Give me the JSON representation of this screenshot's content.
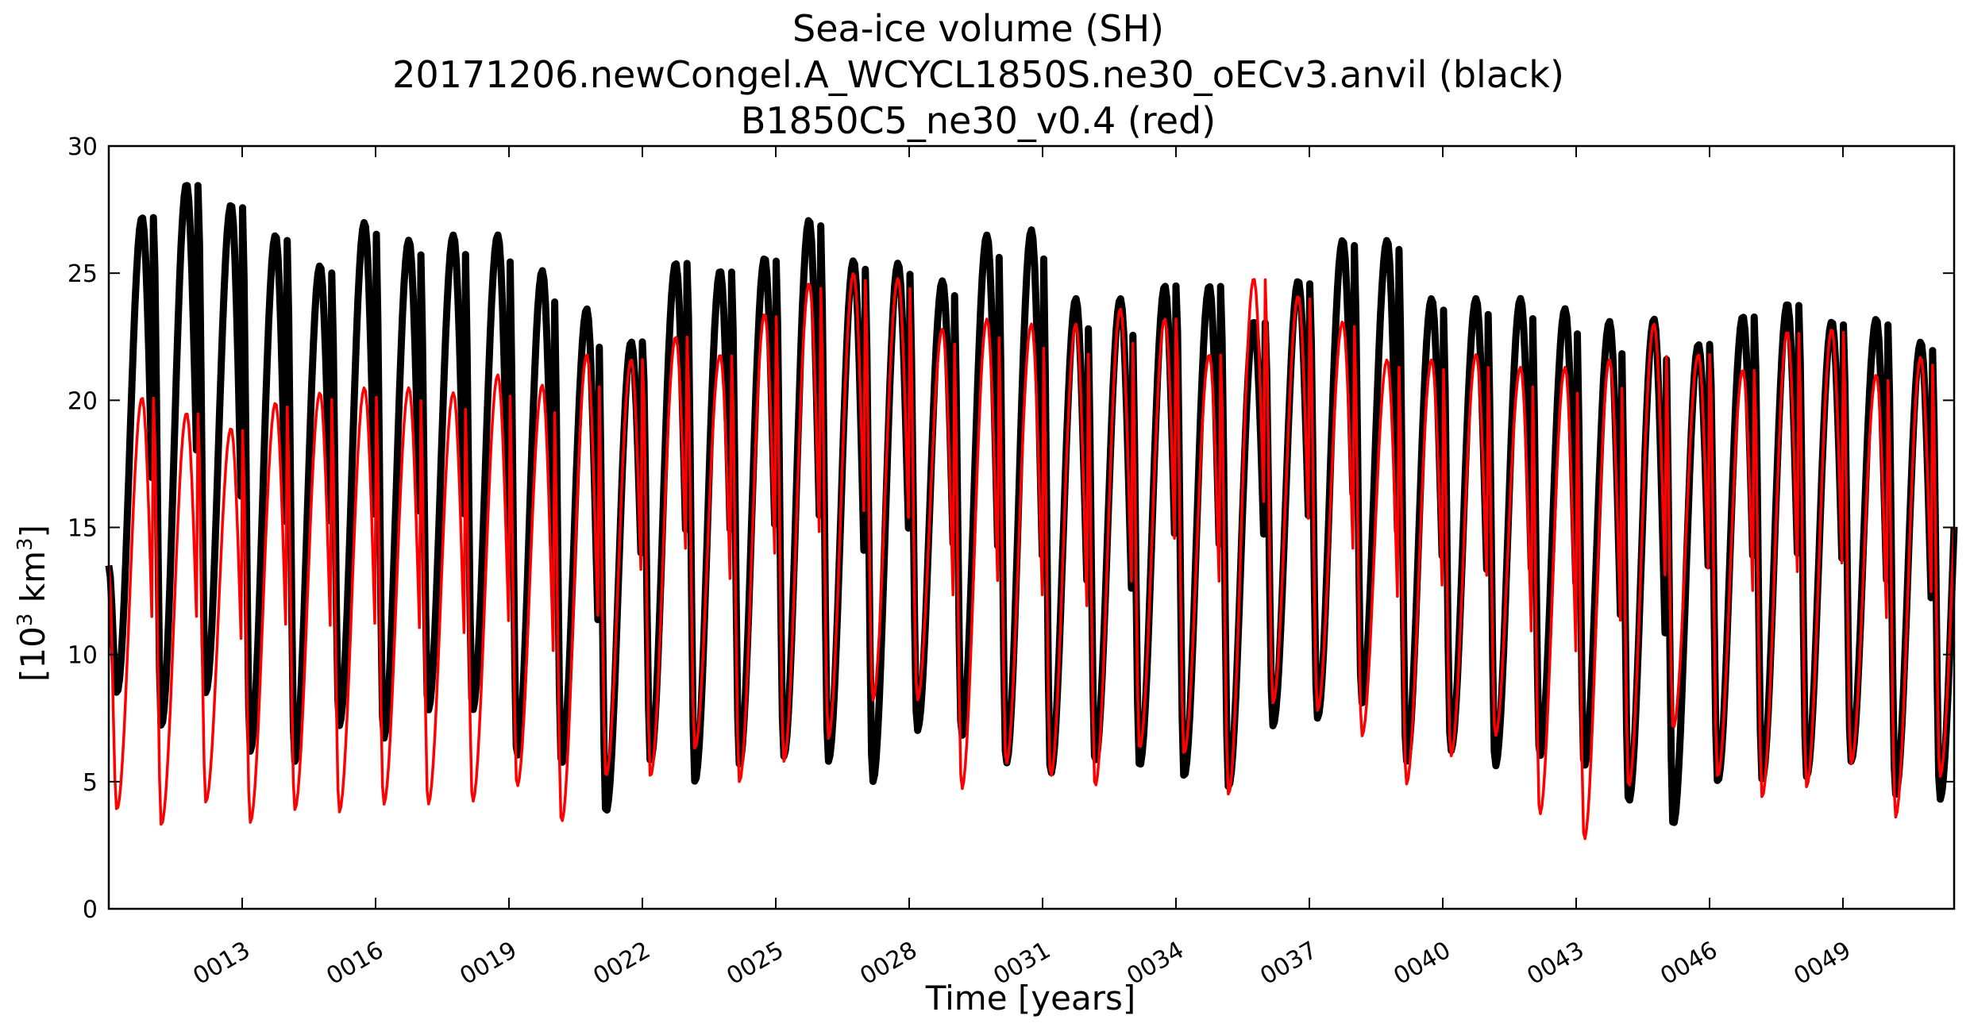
{
  "chart_data": {
    "type": "line",
    "title_lines": [
      "Sea-ice volume (SH)",
      "20171206.newCongel.A_WCYCL1850S.ne30_oECv3.anvil (black)",
      "B1850C5_ne30_v0.4 (red)"
    ],
    "xlabel": "Time [years]",
    "ylabel": {
      "prefix": "[10",
      "sup1": "3",
      "mid": " km",
      "sup2": "3",
      "suffix": "]"
    },
    "xlim": [
      10,
      51.5
    ],
    "ylim": [
      0,
      30
    ],
    "x_ticks": [
      {
        "value": 13,
        "label": "0013"
      },
      {
        "value": 16,
        "label": "0016"
      },
      {
        "value": 19,
        "label": "0019"
      },
      {
        "value": 22,
        "label": "0022"
      },
      {
        "value": 25,
        "label": "0025"
      },
      {
        "value": 28,
        "label": "0028"
      },
      {
        "value": 31,
        "label": "0031"
      },
      {
        "value": 34,
        "label": "0034"
      },
      {
        "value": 37,
        "label": "0037"
      },
      {
        "value": 40,
        "label": "0040"
      },
      {
        "value": 43,
        "label": "0043"
      },
      {
        "value": 46,
        "label": "0046"
      },
      {
        "value": 49,
        "label": "0049"
      }
    ],
    "y_ticks": [
      {
        "value": 0,
        "label": "0"
      },
      {
        "value": 5,
        "label": "5"
      },
      {
        "value": 10,
        "label": "10"
      },
      {
        "value": 15,
        "label": "15"
      },
      {
        "value": 20,
        "label": "20"
      },
      {
        "value": 25,
        "label": "25"
      },
      {
        "value": 30,
        "label": "30"
      }
    ],
    "grid": false,
    "cycle": {
      "peak_phase": 0.75,
      "trough_phase": 0.18,
      "start_value": 13.5
    },
    "series": [
      {
        "color": "#000000",
        "years": [
          10,
          11,
          12,
          13,
          14,
          15,
          16,
          17,
          18,
          19,
          20,
          21,
          22,
          23,
          24,
          25,
          26,
          27,
          28,
          29,
          30,
          31,
          32,
          33,
          34,
          35,
          36,
          37,
          38,
          39,
          40,
          41,
          42,
          43,
          44,
          45,
          46,
          47,
          48,
          49,
          50,
          51
        ],
        "annual_max": [
          27.2,
          28.5,
          27.7,
          26.5,
          25.3,
          27.0,
          26.3,
          26.5,
          26.5,
          25.1,
          23.6,
          22.3,
          25.4,
          25.1,
          25.6,
          27.1,
          25.5,
          25.4,
          24.7,
          26.5,
          26.7,
          24.0,
          24.0,
          24.5,
          24.5,
          23.1,
          24.7,
          26.3,
          26.3,
          24.0,
          24.0,
          24.0,
          23.6,
          23.1,
          23.2,
          22.2,
          23.3,
          23.8,
          23.1,
          23.2,
          22.3,
          22.3
        ],
        "annual_min": [
          8.5,
          7.2,
          8.5,
          6.2,
          5.8,
          7.2,
          6.7,
          7.8,
          7.8,
          6.0,
          5.7,
          3.8,
          5.8,
          5.0,
          5.7,
          6.0,
          5.8,
          5.0,
          7.0,
          6.8,
          5.7,
          5.3,
          5.8,
          5.6,
          5.2,
          4.8,
          7.2,
          7.5,
          8.1,
          5.8,
          6.2,
          5.6,
          6.0,
          5.6,
          4.2,
          3.3,
          5.0,
          5.1,
          5.2,
          5.8,
          4.5,
          4.3
        ]
      },
      {
        "color": "#ff0000",
        "years": [
          10,
          11,
          12,
          13,
          14,
          15,
          16,
          17,
          18,
          19,
          20,
          21,
          22,
          23,
          24,
          25,
          26,
          27,
          28,
          29,
          30,
          31,
          32,
          33,
          34,
          35,
          36,
          37,
          38,
          39,
          40,
          41,
          42,
          43,
          44,
          45,
          46,
          47,
          48,
          49,
          50,
          51
        ],
        "annual_max": [
          20.1,
          19.5,
          18.9,
          19.9,
          20.3,
          20.5,
          20.5,
          20.3,
          21.0,
          20.6,
          21.8,
          21.6,
          22.5,
          21.8,
          23.4,
          24.6,
          25.0,
          24.8,
          22.8,
          23.2,
          23.0,
          23.0,
          23.6,
          23.2,
          21.8,
          24.8,
          24.1,
          23.1,
          21.6,
          21.6,
          21.8,
          21.3,
          21.3,
          21.6,
          23.0,
          21.8,
          21.2,
          22.7,
          22.8,
          21.0,
          21.7,
          21.7
        ],
        "annual_min": [
          3.9,
          3.3,
          4.2,
          3.4,
          3.9,
          3.8,
          4.1,
          4.1,
          4.2,
          4.8,
          3.4,
          5.2,
          5.2,
          6.3,
          5.0,
          5.8,
          6.7,
          8.2,
          8.2,
          4.7,
          5.7,
          5.2,
          4.8,
          6.3,
          6.1,
          4.5,
          8.1,
          7.8,
          6.8,
          4.9,
          6.0,
          6.8,
          3.7,
          2.7,
          4.8,
          7.1,
          5.2,
          4.4,
          4.8,
          5.7,
          3.6,
          5.2
        ]
      }
    ]
  }
}
